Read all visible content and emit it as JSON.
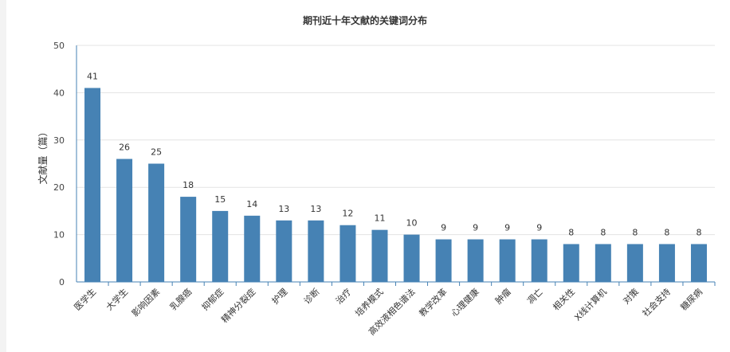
{
  "chart_data": {
    "type": "bar",
    "title": "期刊近十年文献的关键词分布",
    "xlabel": "",
    "ylabel": "文献量（篇）",
    "ylim": [
      0,
      50
    ],
    "yticks": [
      0,
      10,
      20,
      30,
      40,
      50
    ],
    "grid": true,
    "legend": "none",
    "bar_color": "#4682b4",
    "categories": [
      "医学生",
      "大学生",
      "影响因素",
      "乳腺癌",
      "抑郁症",
      "精神分裂症",
      "护理",
      "诊断",
      "治疗",
      "培养模式",
      "高效液相色谱法",
      "教学改革",
      "心理健康",
      "肿瘤",
      "凋亡",
      "相关性",
      "X线计算机",
      "对策",
      "社会支持",
      "糖尿病"
    ],
    "values": [
      41,
      26,
      25,
      18,
      15,
      14,
      13,
      13,
      12,
      11,
      10,
      9,
      9,
      9,
      9,
      8,
      8,
      8,
      8,
      8
    ]
  }
}
